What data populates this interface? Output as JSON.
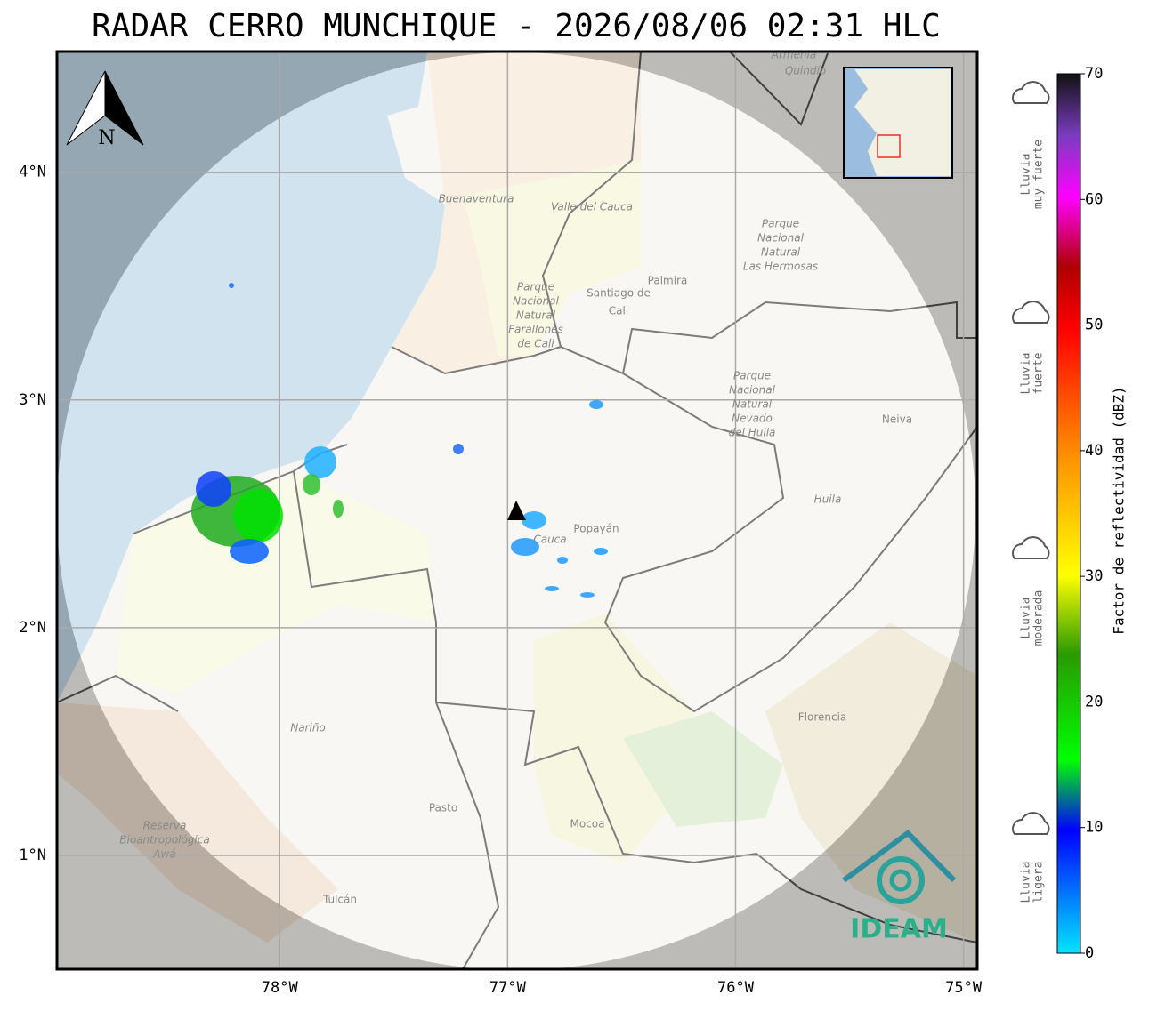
{
  "title": "RADAR CERRO MUNCHIQUE - 2026/08/06 02:31 HLC",
  "north_label": "N",
  "map": {
    "lonlim": [
      -78.977,
      -74.94
    ],
    "latlim": [
      0.5,
      4.53
    ],
    "lon_ticks": [
      {
        "value": -78,
        "label": "78°W"
      },
      {
        "value": -77,
        "label": "77°W"
      },
      {
        "value": -76,
        "label": "76°W"
      },
      {
        "value": -75,
        "label": "75°W"
      }
    ],
    "lat_ticks": [
      {
        "value": 4,
        "label": "4°N"
      },
      {
        "value": 3,
        "label": "3°N"
      },
      {
        "value": 2,
        "label": "2°N"
      },
      {
        "value": 1,
        "label": "1°N"
      }
    ],
    "places": [
      {
        "lines": [
          "Armenia"
        ]
      },
      {
        "lines": [
          "Quindío"
        ]
      },
      {
        "lines": [
          "Buenaventura"
        ]
      },
      {
        "lines": [
          "Valle del Cauca"
        ]
      },
      {
        "lines": [
          "Parque",
          "Nacional",
          "Natural",
          "Las Hermosas"
        ]
      },
      {
        "lines": [
          "Palmira"
        ]
      },
      {
        "lines": [
          "Santiago de",
          "Cali"
        ]
      },
      {
        "lines": [
          "Parque",
          "Nacional",
          "Natural",
          "Farallones",
          "de Cali"
        ]
      },
      {
        "lines": [
          "Parque",
          "Nacional",
          "Natural",
          "Nevado",
          "del Huila"
        ]
      },
      {
        "lines": [
          "Neiva"
        ]
      },
      {
        "lines": [
          "Huila"
        ]
      },
      {
        "lines": [
          "Popayán"
        ]
      },
      {
        "lines": [
          "Cauca"
        ]
      },
      {
        "lines": [
          "Nariño"
        ]
      },
      {
        "lines": [
          "Pasto"
        ]
      },
      {
        "lines": [
          "Mocoa"
        ]
      },
      {
        "lines": [
          "Florencia"
        ]
      },
      {
        "lines": [
          "Reserva",
          "Bioantropológica",
          "Awá"
        ]
      },
      {
        "lines": [
          "Tulcán"
        ]
      }
    ]
  },
  "colorbar": {
    "label": "Factor de reflectividad (dBZ)",
    "lim": [
      0,
      70
    ],
    "ticks": [
      0,
      10,
      20,
      30,
      40,
      50,
      60,
      70
    ]
  },
  "legend": [
    {
      "lines": [
        "Lluvia",
        "muy fuerte"
      ]
    },
    {
      "lines": [
        "Lluvia",
        "fuerte"
      ]
    },
    {
      "lines": [
        "Lluvia",
        "moderada"
      ]
    },
    {
      "lines": [
        "Lluvia",
        "ligera"
      ]
    }
  ],
  "logo": "IDEAM"
}
